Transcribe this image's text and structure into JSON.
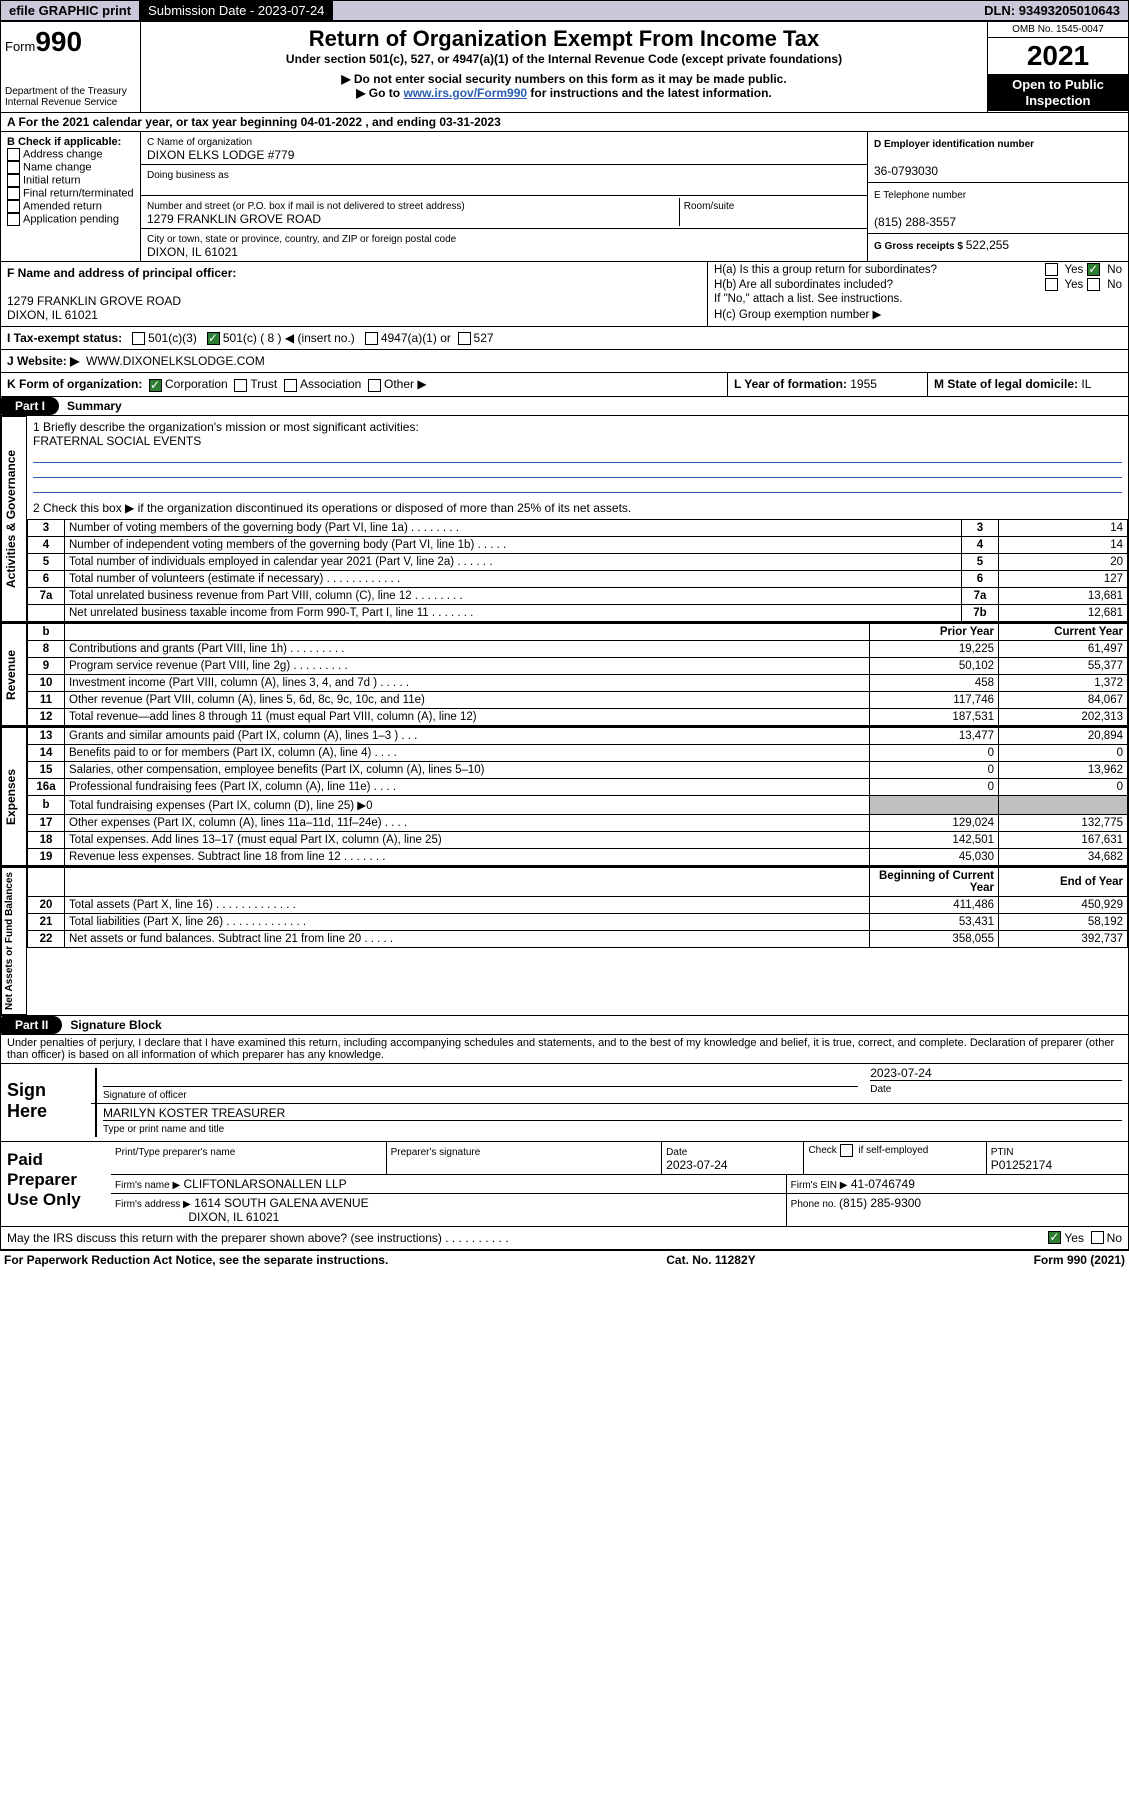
{
  "topbar": {
    "efile": "efile GRAPHIC print",
    "subdate_label": "Submission Date - ",
    "subdate": "2023-07-24",
    "dln_label": "DLN: ",
    "dln": "93493205010643"
  },
  "hdr": {
    "form_small": "Form",
    "form_num": "990",
    "dept": "Department of the Treasury",
    "irs": "Internal Revenue Service",
    "title": "Return of Organization Exempt From Income Tax",
    "subtitle": "Under section 501(c), 527, or 4947(a)(1) of the Internal Revenue Code (except private foundations)",
    "note1": "▶ Do not enter social security numbers on this form as it may be made public.",
    "note2_pre": "▶ Go to ",
    "note2_link": "www.irs.gov/Form990",
    "note2_post": " for instructions and the latest information.",
    "omb": "OMB No. 1545-0047",
    "year": "2021",
    "open1": "Open to Public",
    "open2": "Inspection"
  },
  "period": {
    "text": "A For the 2021 calendar year, or tax year beginning 04-01-2022   , and ending 03-31-2023"
  },
  "boxB": {
    "label": "B Check if applicable:",
    "items": [
      "Address change",
      "Name change",
      "Initial return",
      "Final return/terminated",
      "Amended return",
      "Application pending"
    ]
  },
  "boxC": {
    "label": "C Name of organization",
    "name": "DIXON ELKS LODGE #779",
    "dba_label": "Doing business as",
    "street_label": "Number and street (or P.O. box if mail is not delivered to street address)",
    "room_label": "Room/suite",
    "street": "1279 FRANKLIN GROVE ROAD",
    "city_label": "City or town, state or province, country, and ZIP or foreign postal code",
    "city": "DIXON, IL  61021"
  },
  "boxD": {
    "label": "D Employer identification number",
    "value": "36-0793030"
  },
  "boxE": {
    "label": "E Telephone number",
    "value": "(815) 288-3557"
  },
  "boxG": {
    "label": "G Gross receipts $ ",
    "value": "522,255"
  },
  "boxF": {
    "label": "F  Name and address of principal officer:",
    "addr1": "1279 FRANKLIN GROVE ROAD",
    "addr2": "DIXON, IL  61021"
  },
  "boxH": {
    "a": "H(a)  Is this a group return for subordinates?",
    "b": "H(b)  Are all subordinates included?",
    "b_note": "If \"No,\" attach a list. See instructions.",
    "c": "H(c)  Group exemption number ▶",
    "yes": "Yes",
    "no": "No"
  },
  "taxexempt": {
    "label": "I   Tax-exempt status:",
    "c3": "501(c)(3)",
    "c_insert_pre": "501(c) ( 8 ) ◀ (insert no.)",
    "a1": "4947(a)(1) or",
    "p527": "527"
  },
  "website": {
    "label": "J   Website: ▶",
    "value": "WWW.DIXONELKSLODGE.COM"
  },
  "korg": {
    "label": "K Form of organization:",
    "corp": "Corporation",
    "trust": "Trust",
    "assoc": "Association",
    "other": "Other ▶"
  },
  "boxL": {
    "label": "L Year of formation: ",
    "value": "1955"
  },
  "boxM": {
    "label": "M State of legal domicile: ",
    "value": "IL"
  },
  "part1": {
    "label": "Part I",
    "title": "Summary",
    "line1": "1   Briefly describe the organization's mission or most significant activities:",
    "mission": "FRATERNAL SOCIAL EVENTS",
    "line2": "2   Check this box ▶        if the organization discontinued its operations or disposed of more than 25% of its net assets.",
    "groups": {
      "gov": "Activities & Governance",
      "rev": "Revenue",
      "exp": "Expenses",
      "net": "Net Assets or Fund Balances"
    },
    "gov_rows": [
      {
        "n": "3",
        "t": "Number of voting members of the governing body (Part VI, line 1a)   .    .    .    .    .    .    .    .",
        "c": "3",
        "v": "14"
      },
      {
        "n": "4",
        "t": "Number of independent voting members of the governing body (Part VI, line 1b)   .    .    .    .    .",
        "c": "4",
        "v": "14"
      },
      {
        "n": "5",
        "t": "Total number of individuals employed in calendar year 2021 (Part V, line 2a)   .    .    .    .    .    .",
        "c": "5",
        "v": "20"
      },
      {
        "n": "6",
        "t": "Total number of volunteers (estimate if necessary)   .    .    .    .    .    .    .    .    .    .    .    .",
        "c": "6",
        "v": "127"
      },
      {
        "n": "7a",
        "t": "Total unrelated business revenue from Part VIII, column (C), line 12   .    .    .    .    .    .    .    .",
        "c": "7a",
        "v": "13,681"
      },
      {
        "n": "",
        "t": "Net unrelated business taxable income from Form 990-T, Part I, line 11   .    .    .    .    .    .    .",
        "c": "7b",
        "v": "12,681"
      }
    ],
    "subhdr": {
      "blank": "b",
      "py": "Prior Year",
      "cy": "Current Year"
    },
    "rev_rows": [
      {
        "n": "8",
        "t": "Contributions and grants (Part VIII, line 1h)   .    .    .    .    .    .    .    .    .",
        "py": "19,225",
        "cy": "61,497"
      },
      {
        "n": "9",
        "t": "Program service revenue (Part VIII, line 2g)   .    .    .    .    .    .    .    .    .",
        "py": "50,102",
        "cy": "55,377"
      },
      {
        "n": "10",
        "t": "Investment income (Part VIII, column (A), lines 3, 4, and 7d )   .    .    .    .    .",
        "py": "458",
        "cy": "1,372"
      },
      {
        "n": "11",
        "t": "Other revenue (Part VIII, column (A), lines 5, 6d, 8c, 9c, 10c, and 11e)",
        "py": "117,746",
        "cy": "84,067"
      },
      {
        "n": "12",
        "t": "Total revenue—add lines 8 through 11 (must equal Part VIII, column (A), line 12)",
        "py": "187,531",
        "cy": "202,313"
      }
    ],
    "exp_rows": [
      {
        "n": "13",
        "t": "Grants and similar amounts paid (Part IX, column (A), lines 1–3 )   .    .    .",
        "py": "13,477",
        "cy": "20,894"
      },
      {
        "n": "14",
        "t": "Benefits paid to or for members (Part IX, column (A), line 4)   .    .    .    .",
        "py": "0",
        "cy": "0"
      },
      {
        "n": "15",
        "t": "Salaries, other compensation, employee benefits (Part IX, column (A), lines 5–10)",
        "py": "0",
        "cy": "13,962"
      },
      {
        "n": "16a",
        "t": "Professional fundraising fees (Part IX, column (A), line 11e)   .    .    .    .",
        "py": "0",
        "cy": "0"
      },
      {
        "n": "b",
        "t": "Total fundraising expenses (Part IX, column (D), line 25) ▶0",
        "py": "",
        "cy": "",
        "grey": true
      },
      {
        "n": "17",
        "t": "Other expenses (Part IX, column (A), lines 11a–11d, 11f–24e)   .    .    .    .",
        "py": "129,024",
        "cy": "132,775"
      },
      {
        "n": "18",
        "t": "Total expenses. Add lines 13–17 (must equal Part IX, column (A), line 25)",
        "py": "142,501",
        "cy": "167,631"
      },
      {
        "n": "19",
        "t": "Revenue less expenses. Subtract line 18 from line 12   .    .    .    .    .    .    .",
        "py": "45,030",
        "cy": "34,682"
      }
    ],
    "net_hdr": {
      "bcy": "Beginning of Current Year",
      "eoy": "End of Year"
    },
    "net_rows": [
      {
        "n": "20",
        "t": "Total assets (Part X, line 16)   .    .    .    .    .    .    .    .    .    .    .    .    .",
        "py": "411,486",
        "cy": "450,929"
      },
      {
        "n": "21",
        "t": "Total liabilities (Part X, line 26)   .    .    .    .    .    .    .    .    .    .    .    .    .",
        "py": "53,431",
        "cy": "58,192"
      },
      {
        "n": "22",
        "t": "Net assets or fund balances. Subtract line 21 from line 20   .    .    .    .    .",
        "py": "358,055",
        "cy": "392,737"
      }
    ]
  },
  "part2": {
    "label": "Part II",
    "title": "Signature Block",
    "penalty": "Under penalties of perjury, I declare that I have examined this return, including accompanying schedules and statements, and to the best of my knowledge and belief, it is true, correct, and complete. Declaration of preparer (other than officer) is based on all information of which preparer has any knowledge.",
    "sign_here": "Sign Here",
    "sig_officer": "Signature of officer",
    "sig_date": "Date",
    "sig_date_val": "2023-07-24",
    "officer_name": "MARILYN KOSTER  TREASURER",
    "type_name": "Type or print name and title",
    "paid_label": "Paid Preparer Use Only",
    "pt_name_label": "Print/Type preparer's name",
    "pt_sig_label": "Preparer's signature",
    "pt_date_label": "Date",
    "pt_date": "2023-07-24",
    "pt_check": "Check         if self-employed",
    "pt_ptin_label": "PTIN",
    "pt_ptin": "P01252174",
    "firm_name_label": "Firm's name    ▶",
    "firm_name": "CLIFTONLARSONALLEN LLP",
    "firm_ein_label": "Firm's EIN ▶",
    "firm_ein": "41-0746749",
    "firm_addr_label": "Firm's address ▶",
    "firm_addr1": "1614 SOUTH GALENA AVENUE",
    "firm_addr2": "DIXON, IL  61021",
    "phone_label": "Phone no. ",
    "phone": "(815) 285-9300",
    "may_irs": "May the IRS discuss this return with the preparer shown above? (see instructions)    .    .    .    .    .    .    .    .    .    .",
    "yes": "Yes",
    "no": "No"
  },
  "footer": {
    "pra": "For Paperwork Reduction Act Notice, see the separate instructions.",
    "cat": "Cat. No. 11282Y",
    "form": "Form 990 (2021)"
  }
}
